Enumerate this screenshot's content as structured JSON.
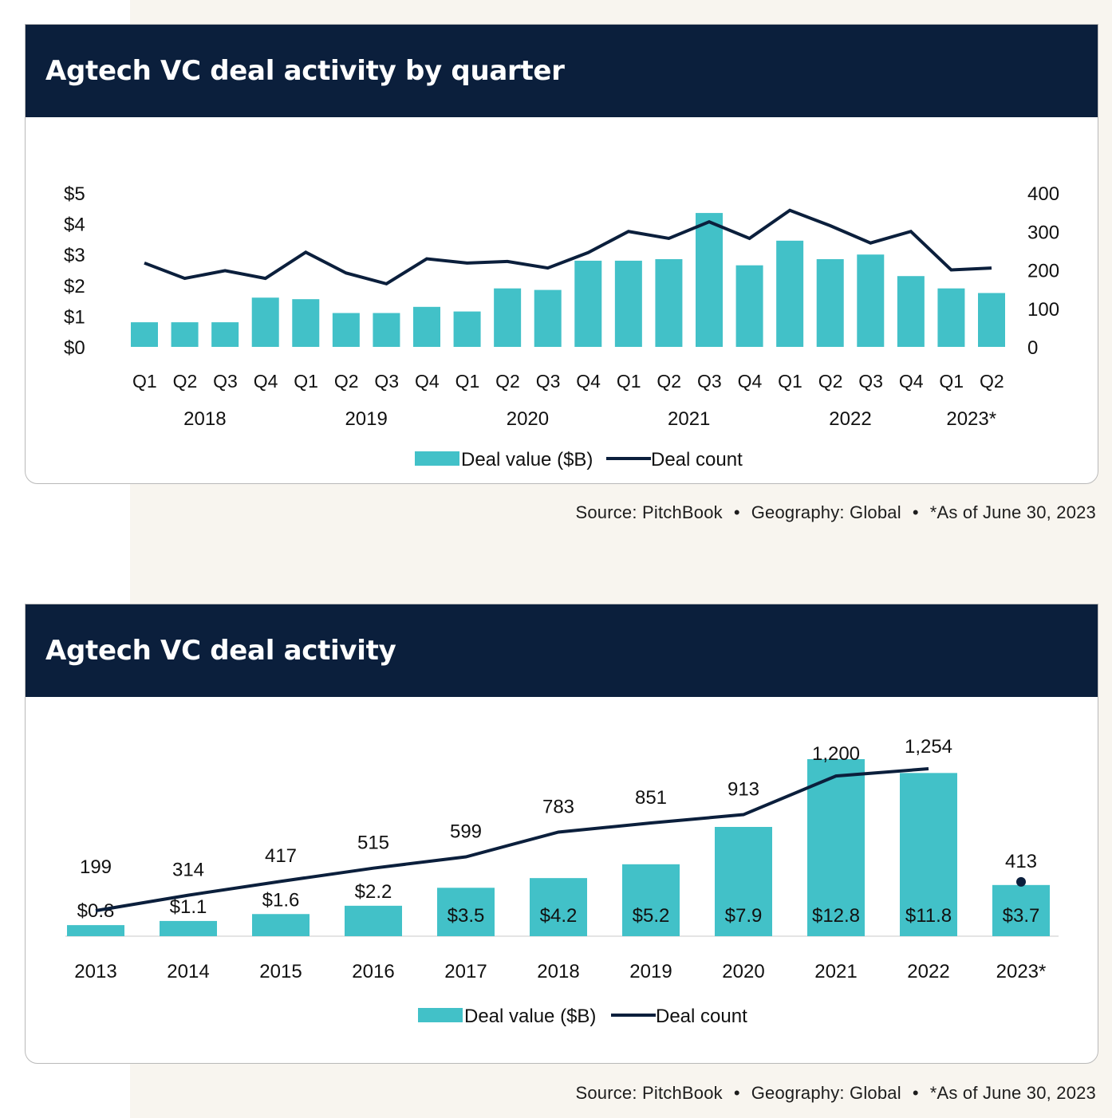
{
  "chart1": {
    "title": "Agtech VC deal activity by quarter",
    "source": "Source: PitchBook",
    "geography": "Geography: Global",
    "note": "*As of June 30, 2023",
    "legend": {
      "bar": "Deal value ($B)",
      "line": "Deal count"
    }
  },
  "chart2": {
    "title": "Agtech VC deal activity",
    "source": "Source: PitchBook",
    "geography": "Geography: Global",
    "note": "*As of June 30, 2023",
    "legend": {
      "bar": "Deal value ($B)",
      "line": "Deal count"
    }
  },
  "colors": {
    "bar": "#42c1c8",
    "line": "#0b1f3c",
    "header": "#0b1f3c"
  },
  "chart_data": [
    {
      "type": "bar",
      "title": "Agtech VC deal activity by quarter",
      "categories": [
        "Q1",
        "Q2",
        "Q3",
        "Q4",
        "Q1",
        "Q2",
        "Q3",
        "Q4",
        "Q1",
        "Q2",
        "Q3",
        "Q4",
        "Q1",
        "Q2",
        "Q3",
        "Q4",
        "Q1",
        "Q2",
        "Q3",
        "Q4",
        "Q1",
        "Q2"
      ],
      "groups": [
        {
          "label": "2018",
          "start": 0,
          "end": 3
        },
        {
          "label": "2019",
          "start": 4,
          "end": 7
        },
        {
          "label": "2020",
          "start": 8,
          "end": 11
        },
        {
          "label": "2021",
          "start": 12,
          "end": 15
        },
        {
          "label": "2022",
          "start": 16,
          "end": 19
        },
        {
          "label": "2023*",
          "start": 20,
          "end": 21
        }
      ],
      "series": [
        {
          "name": "Deal value ($B)",
          "type": "bar",
          "axis": "left",
          "values": [
            0.8,
            0.8,
            0.8,
            1.6,
            1.55,
            1.1,
            1.1,
            1.3,
            1.15,
            1.9,
            1.85,
            2.8,
            2.8,
            2.85,
            4.35,
            2.65,
            3.45,
            2.85,
            3.0,
            2.3,
            1.9,
            1.75
          ]
        },
        {
          "name": "Deal count",
          "type": "line",
          "axis": "right",
          "values": [
            218,
            178,
            198,
            178,
            246,
            192,
            164,
            229,
            218,
            222,
            205,
            245,
            300,
            282,
            325,
            282,
            355,
            315,
            270,
            300,
            200,
            205
          ]
        }
      ],
      "left_axis": {
        "ticks": [
          "$0",
          "$1",
          "$2",
          "$3",
          "$4",
          "$5"
        ],
        "range": [
          0,
          5
        ]
      },
      "right_axis": {
        "ticks": [
          "0",
          "100",
          "200",
          "300",
          "400"
        ],
        "range": [
          0,
          400
        ]
      },
      "legend": "bottom-center",
      "grid": false
    },
    {
      "type": "bar",
      "title": "Agtech VC deal activity",
      "categories": [
        "2013",
        "2014",
        "2015",
        "2016",
        "2017",
        "2018",
        "2019",
        "2020",
        "2021",
        "2022",
        "2023*"
      ],
      "series": [
        {
          "name": "Deal value ($B)",
          "type": "bar",
          "values": [
            0.8,
            1.1,
            1.6,
            2.2,
            3.5,
            4.2,
            5.2,
            7.9,
            12.8,
            11.8,
            3.7
          ],
          "labels": [
            "$0.8",
            "$1.1",
            "$1.6",
            "$2.2",
            "$3.5",
            "$4.2",
            "$5.2",
            "$7.9",
            "$12.8",
            "$11.8",
            "$3.7"
          ]
        },
        {
          "name": "Deal count",
          "type": "line",
          "values": [
            199,
            314,
            417,
            515,
            599,
            783,
            851,
            913,
            1200,
            1254,
            413
          ],
          "labels": [
            "199",
            "314",
            "417",
            "515",
            "599",
            "783",
            "851",
            "913",
            "1,200",
            "1,254",
            "413"
          ]
        }
      ],
      "legend": "bottom-center",
      "grid": false
    }
  ]
}
